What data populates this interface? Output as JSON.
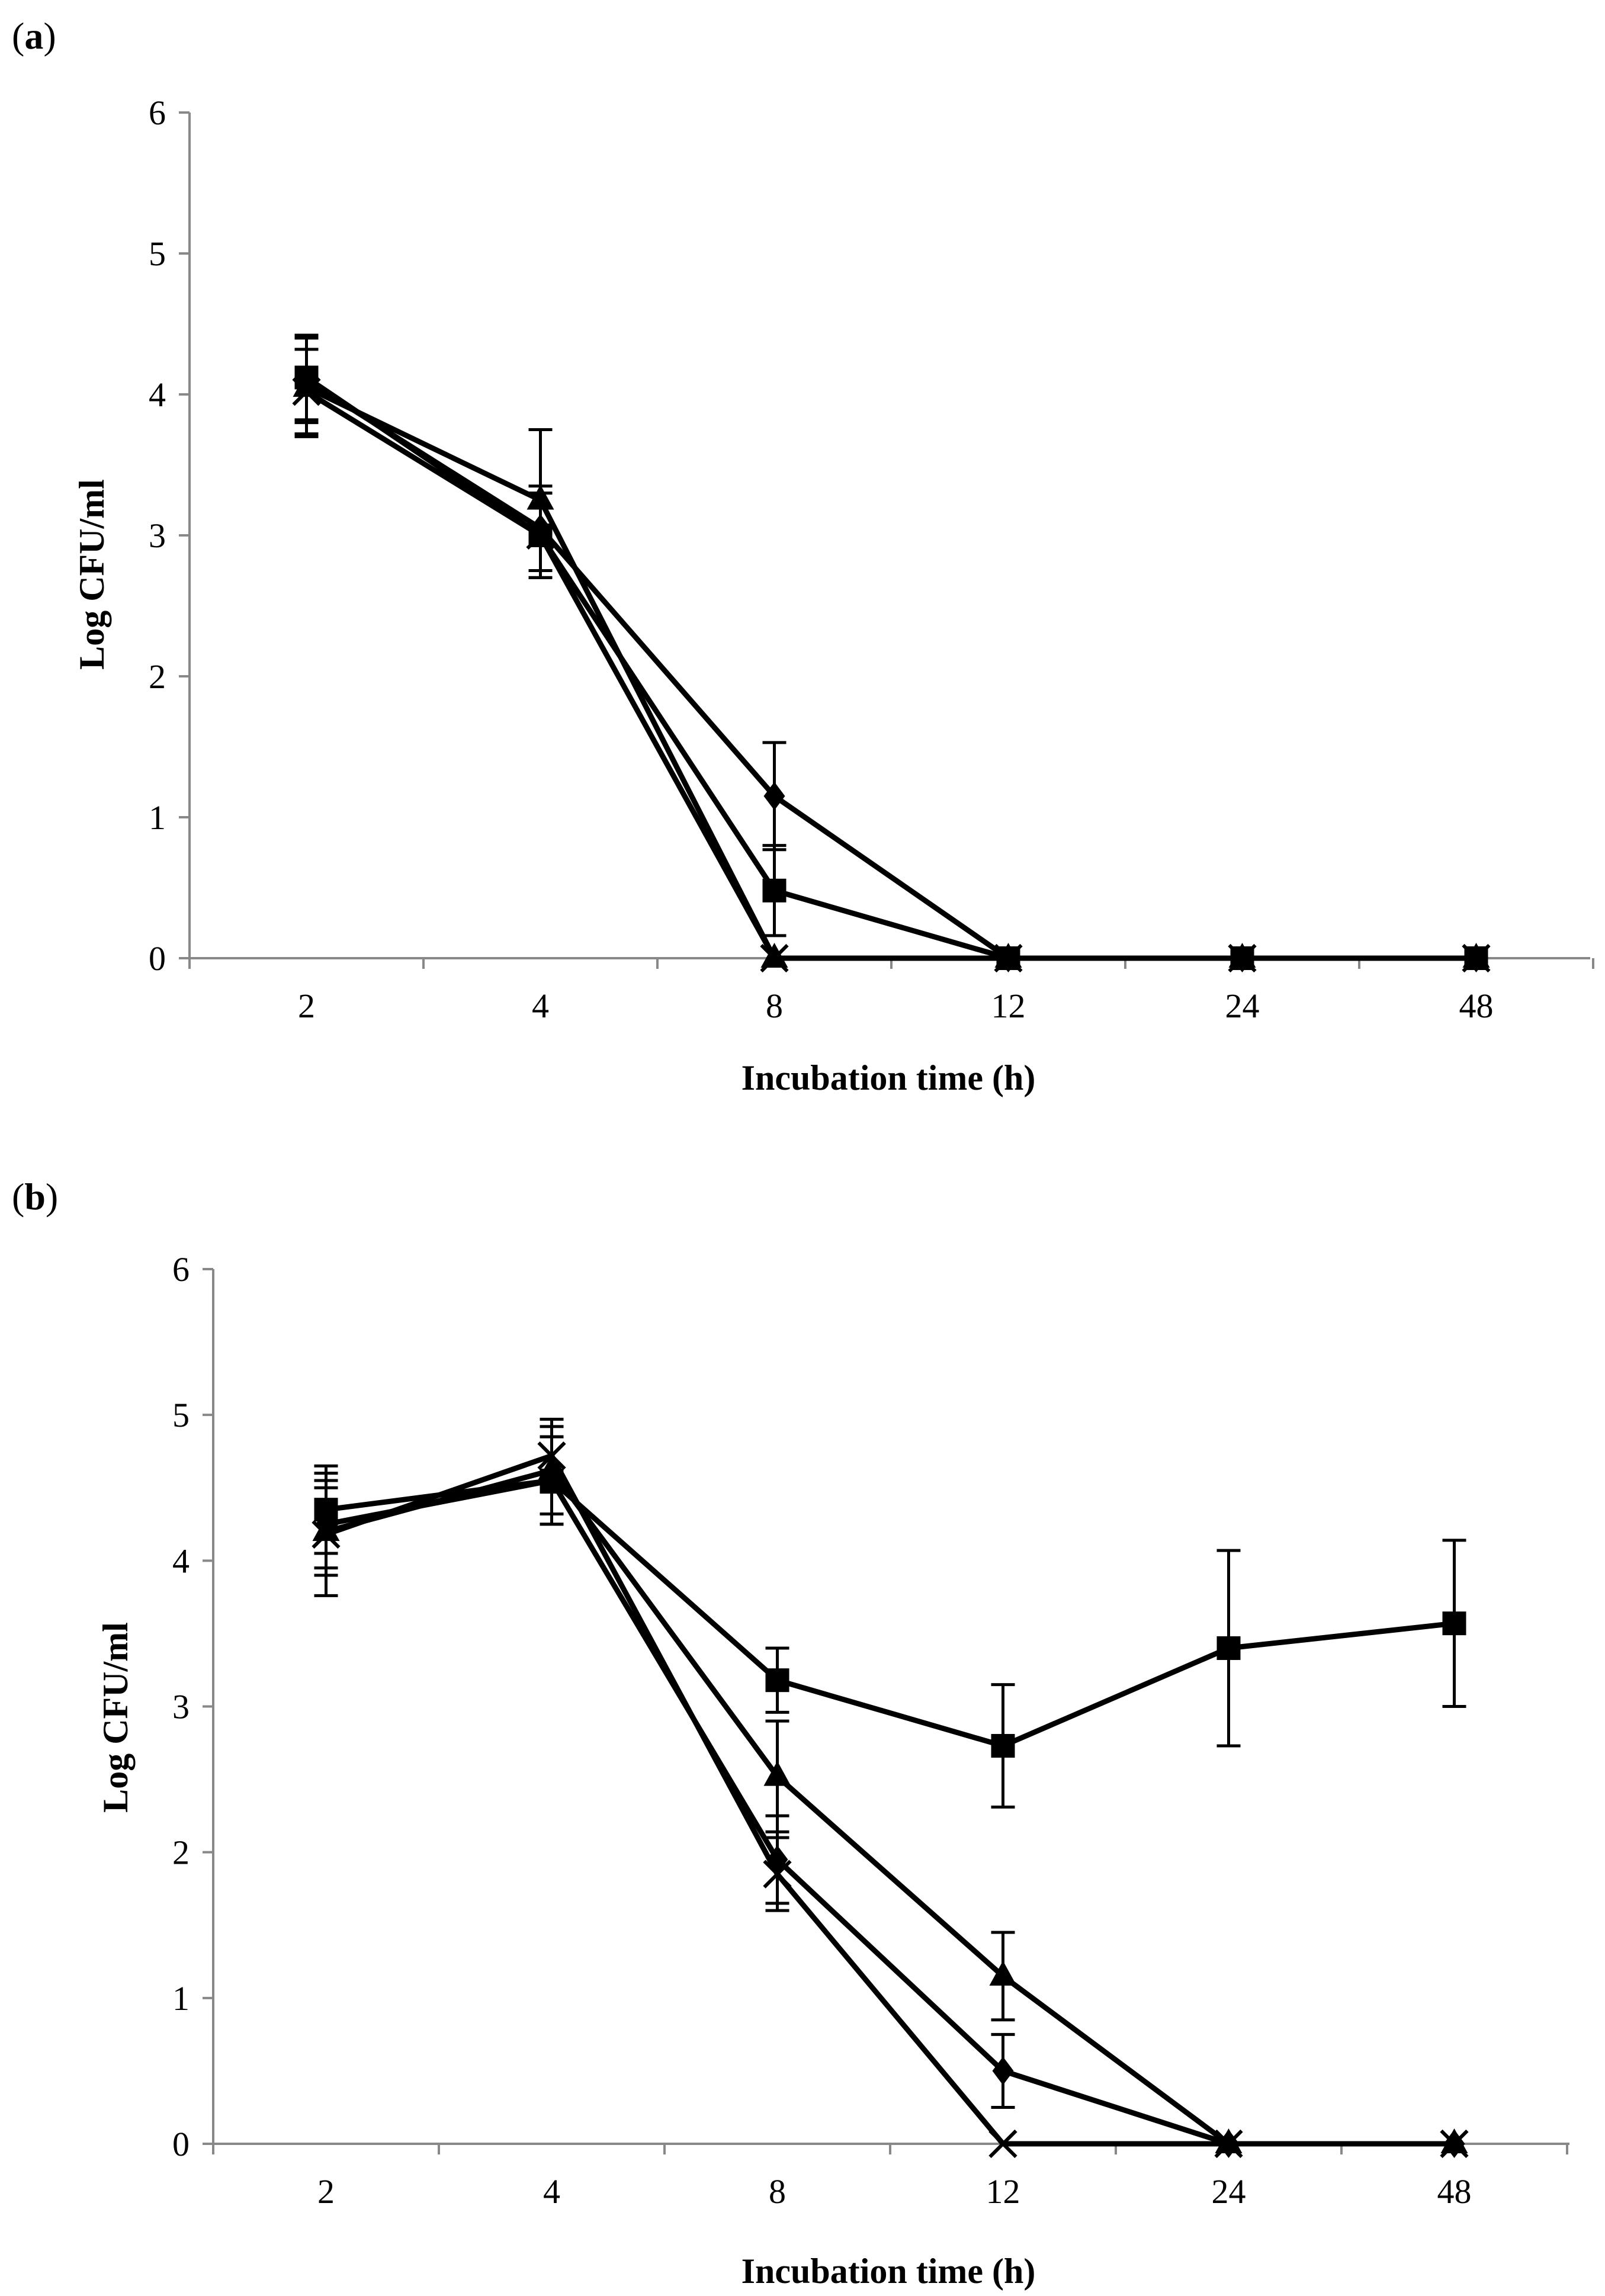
{
  "chart_data": [
    {
      "panel_label_open": "(",
      "panel_label_letter": "a",
      "panel_label_close": ")",
      "type": "line",
      "xlabel": "Incubation time (h)",
      "ylabel": "Log CFU/ml",
      "categories": [
        "2",
        "4",
        "8",
        "12",
        "24",
        "48"
      ],
      "ylim": [
        0,
        6
      ],
      "yticks": [
        "0",
        "1",
        "2",
        "3",
        "4",
        "5",
        "6"
      ],
      "series": [
        {
          "marker": "diamond",
          "values": [
            4.1,
            3.05,
            1.15,
            0,
            0,
            0
          ],
          "errors": [
            0.3,
            0.3,
            0.38,
            0,
            0,
            0
          ]
        },
        {
          "marker": "square",
          "values": [
            4.12,
            3.0,
            0.48,
            0,
            0,
            0
          ],
          "errors": [
            0.3,
            0.3,
            0.32,
            0,
            0,
            0
          ]
        },
        {
          "marker": "triangle",
          "values": [
            4.05,
            3.25,
            0,
            0,
            0,
            0
          ],
          "errors": [
            0.35,
            0.5,
            0,
            0,
            0,
            0
          ]
        },
        {
          "marker": "x",
          "values": [
            4.02,
            3.0,
            0,
            0,
            0,
            0
          ],
          "errors": [
            0.3,
            0.3,
            0,
            0,
            0,
            0
          ]
        }
      ]
    },
    {
      "panel_label_open": "(",
      "panel_label_letter": "b",
      "panel_label_close": ")",
      "type": "line",
      "xlabel": "Incubation time (h)",
      "ylabel": "Log CFU/ml",
      "categories": [
        "2",
        "4",
        "8",
        "12",
        "24",
        "48"
      ],
      "ylim": [
        0,
        6
      ],
      "yticks": [
        "0",
        "1",
        "2",
        "3",
        "4",
        "5",
        "6"
      ],
      "series": [
        {
          "marker": "diamond",
          "values": [
            4.25,
            4.55,
            1.95,
            0.5,
            0,
            0
          ],
          "errors": [
            0.3,
            0.3,
            0.3,
            0.25,
            0,
            0
          ]
        },
        {
          "marker": "square",
          "values": [
            4.35,
            4.55,
            3.18,
            2.73,
            3.4,
            3.57
          ],
          "errors": [
            0.3,
            0.3,
            0.22,
            0.42,
            0.67,
            0.57
          ]
        },
        {
          "marker": "triangle",
          "values": [
            4.2,
            4.62,
            2.52,
            1.15,
            0,
            0
          ],
          "errors": [
            0.3,
            0.3,
            0.38,
            0.3,
            0,
            0
          ]
        },
        {
          "marker": "x",
          "values": [
            4.18,
            4.72,
            1.85,
            0,
            0,
            0
          ],
          "errors": [
            0.42,
            0.25,
            0.25,
            0,
            0,
            0
          ]
        }
      ]
    }
  ]
}
